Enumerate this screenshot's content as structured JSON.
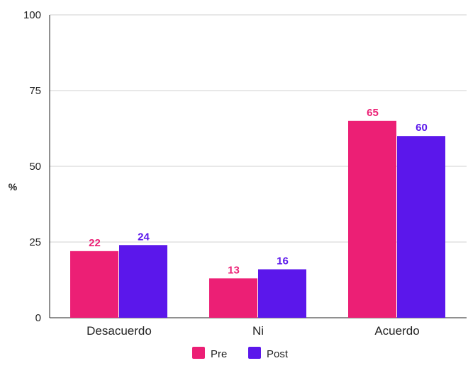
{
  "chart_data": {
    "type": "bar",
    "title": "",
    "xlabel": "",
    "ylabel": "%",
    "ylim": [
      0,
      100
    ],
    "yticks": [
      "0",
      "25",
      "50",
      "75",
      "100"
    ],
    "grid": true,
    "legend_position": "bottom",
    "categories": [
      "Desacuerdo",
      "Ni",
      "Acuerdo"
    ],
    "series": [
      {
        "name": "Pre",
        "values": [
          22,
          13,
          65
        ],
        "color": "#EC1F75"
      },
      {
        "name": "Post",
        "values": [
          24,
          16,
          60
        ],
        "color": "#5B17EB"
      }
    ]
  }
}
